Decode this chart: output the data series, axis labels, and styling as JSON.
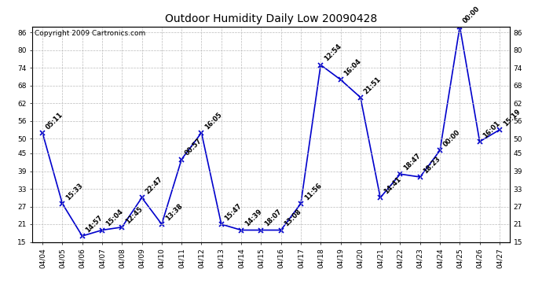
{
  "title": "Outdoor Humidity Daily Low 20090428",
  "copyright": "Copyright 2009 Cartronics.com",
  "dates": [
    "04/04",
    "04/05",
    "04/06",
    "04/07",
    "04/08",
    "04/09",
    "04/10",
    "04/11",
    "04/12",
    "04/13",
    "04/14",
    "04/15",
    "04/16",
    "04/17",
    "04/18",
    "04/19",
    "04/20",
    "04/21",
    "04/22",
    "04/23",
    "04/24",
    "04/25",
    "04/26",
    "04/27"
  ],
  "values": [
    52,
    28,
    17,
    19,
    20,
    30,
    21,
    43,
    52,
    21,
    19,
    19,
    19,
    28,
    75,
    70,
    64,
    30,
    38,
    37,
    46,
    88,
    49,
    53
  ],
  "labels": [
    "05:11",
    "15:33",
    "14:57",
    "15:04",
    "12:45",
    "22:47",
    "13:38",
    "00:57",
    "16:05",
    "15:47",
    "14:39",
    "18:07",
    "13:08",
    "11:56",
    "12:54",
    "16:04",
    "21:51",
    "14:41",
    "18:47",
    "18:23",
    "00:00",
    "00:00",
    "16:01",
    "15:19"
  ],
  "line_color": "#0000cc",
  "marker_color": "#0000cc",
  "bg_color": "#ffffff",
  "grid_color": "#bbbbbb",
  "ylim_min": 15,
  "ylim_max": 88,
  "yticks": [
    15,
    21,
    27,
    33,
    39,
    45,
    50,
    56,
    62,
    68,
    74,
    80,
    86
  ],
  "title_fontsize": 10,
  "copyright_fontsize": 6.5,
  "label_fontsize": 6,
  "tick_fontsize": 6.5
}
